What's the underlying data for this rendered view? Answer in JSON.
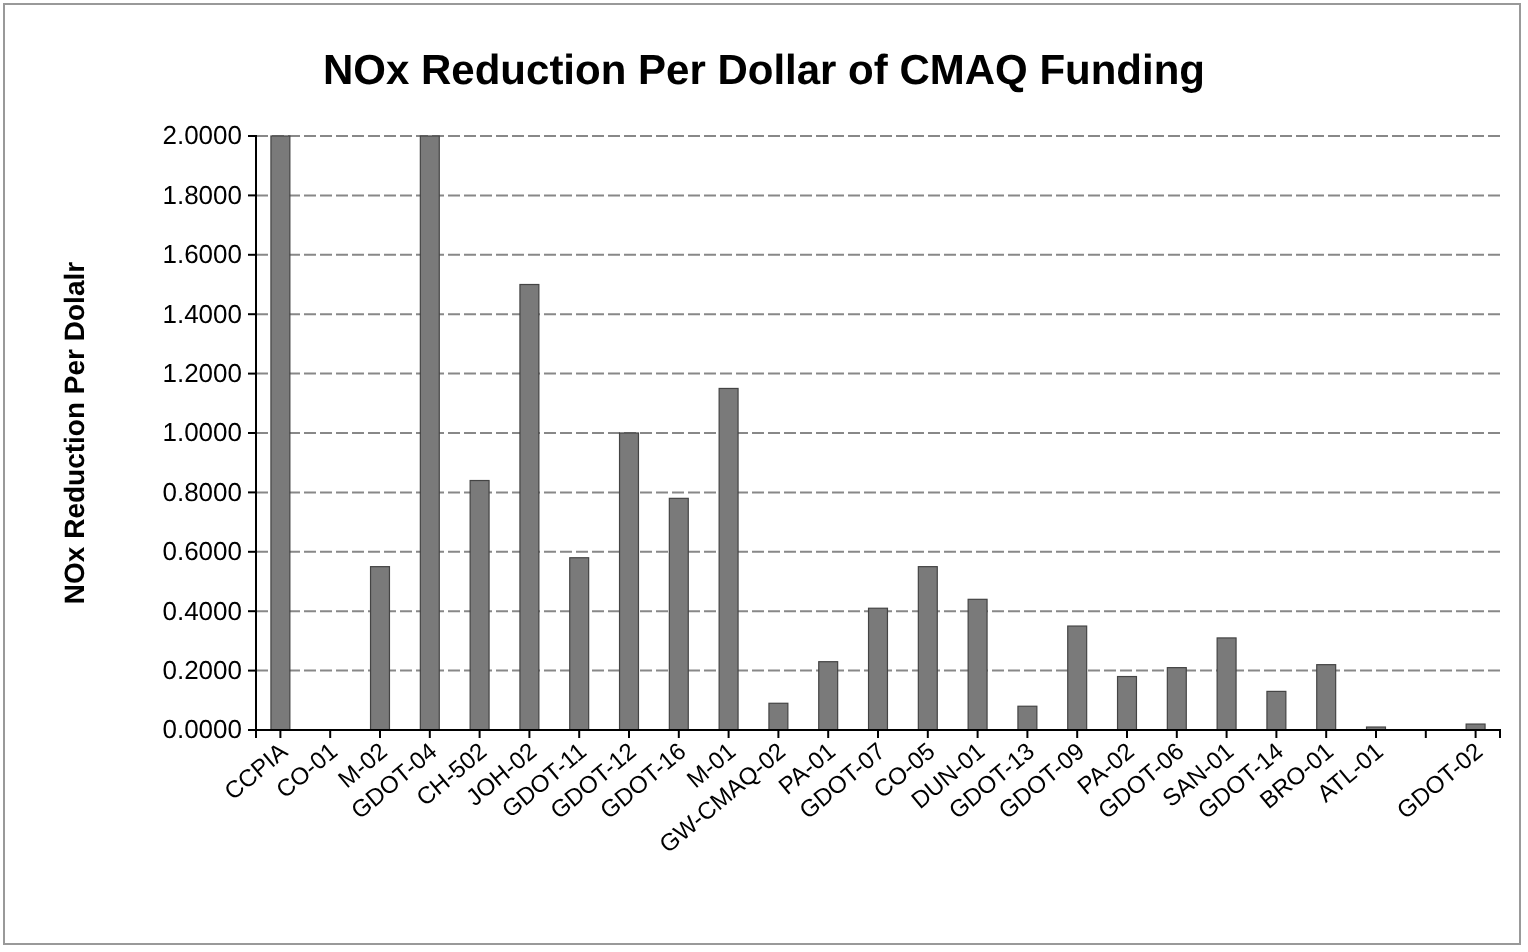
{
  "chart_data": {
    "type": "bar",
    "title": "NOx Reduction Per Dollar of CMAQ Funding",
    "ylabel": "NOx Reduction Per Dolalr",
    "categories": [
      "CCPIA",
      "CO-01",
      "M-02",
      "GDOT-04",
      "CH-502",
      "JOH-02",
      "GDOT-11",
      "GDOT-12",
      "GDOT-16",
      "M-01",
      "GW-CMAQ-02",
      "PA-01",
      "GDOT-07",
      "CO-05",
      "DUN-01",
      "GDOT-13",
      "GDOT-09",
      "PA-02",
      "GDOT-06",
      "SAN-01",
      "GDOT-14",
      "BRO-01",
      "ATL-01",
      null,
      "GDOT-02"
    ],
    "values": [
      2.0,
      0,
      0.55,
      2.0,
      0.84,
      1.5,
      0.58,
      1.0,
      0.78,
      1.15,
      0.09,
      0.23,
      0.41,
      0.55,
      0.44,
      0.08,
      0.35,
      0.18,
      0.21,
      0.31,
      0.13,
      0.22,
      0.01,
      0,
      0.02
    ],
    "color": "#7a7a7a",
    "ylim": [
      0,
      2
    ],
    "yticks": [
      {
        "value": 0,
        "label": "0.0000"
      },
      {
        "value": 0.2,
        "label": "0.2000"
      },
      {
        "value": 0.4,
        "label": "0.4000"
      },
      {
        "value": 0.6,
        "label": "0.6000"
      },
      {
        "value": 0.8,
        "label": "0.8000"
      },
      {
        "value": 1,
        "label": "1.0000"
      },
      {
        "value": 1.2,
        "label": "1.2000"
      },
      {
        "value": 1.4,
        "label": "1.4000"
      },
      {
        "value": 1.6,
        "label": "1.6000"
      },
      {
        "value": 1.8,
        "label": "1.8000"
      },
      {
        "value": 2,
        "label": "2.0000"
      }
    ],
    "grid": "y"
  }
}
